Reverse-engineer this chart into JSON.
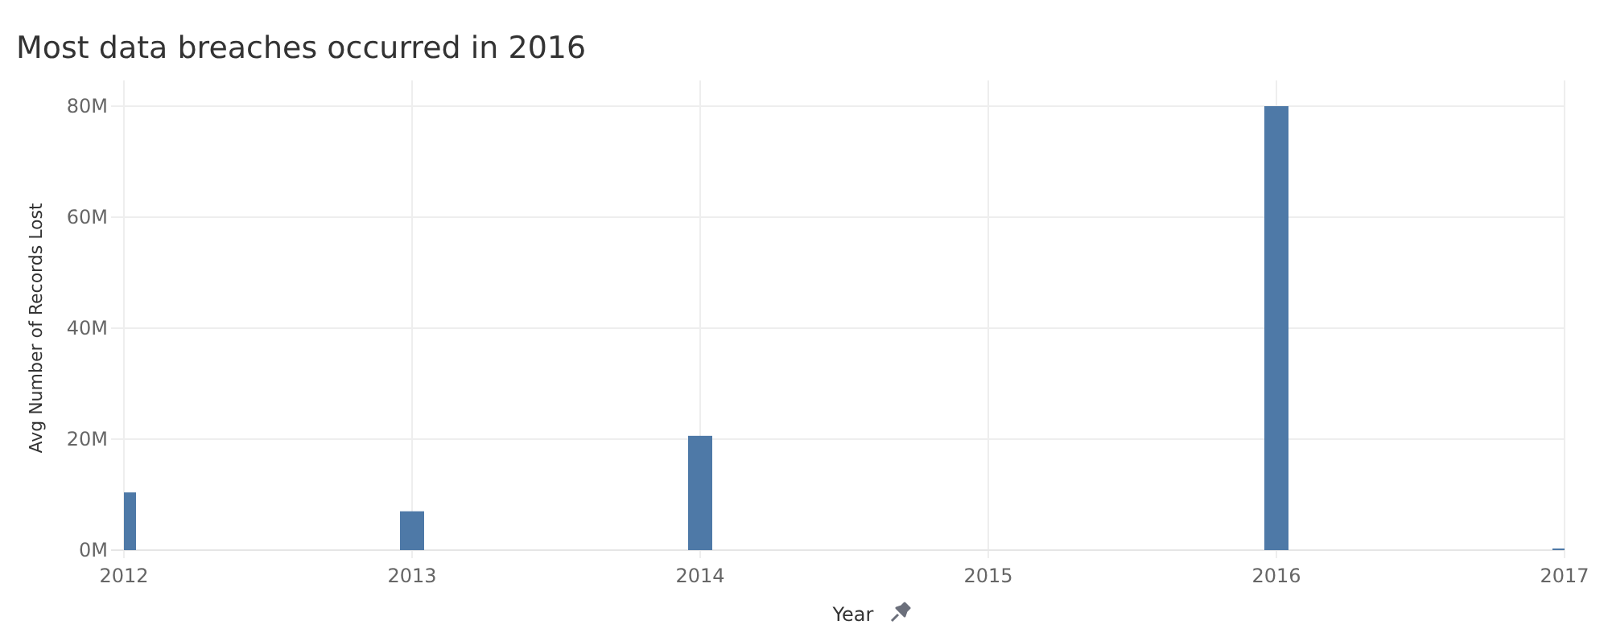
{
  "chart_data": {
    "type": "bar",
    "title": "Most data breaches occurred in 2016",
    "xlabel": "Year",
    "ylabel": "Avg Number of Records Lost",
    "x": [
      2012,
      2013,
      2014,
      2016,
      2017
    ],
    "values": [
      10400000,
      7000000,
      20600000,
      80000000,
      300000
    ],
    "color": "#4e79a7",
    "xlim": [
      2012,
      2017
    ],
    "xticks": [
      2012,
      2013,
      2014,
      2015,
      2016,
      2017
    ],
    "ylim": [
      0,
      80000000
    ],
    "yticks": [
      {
        "value": 0,
        "label": "0M"
      },
      {
        "value": 20000000,
        "label": "20M"
      },
      {
        "value": 40000000,
        "label": "40M"
      },
      {
        "value": 60000000,
        "label": "60M"
      },
      {
        "value": 80000000,
        "label": "80M"
      }
    ],
    "grid": true
  }
}
